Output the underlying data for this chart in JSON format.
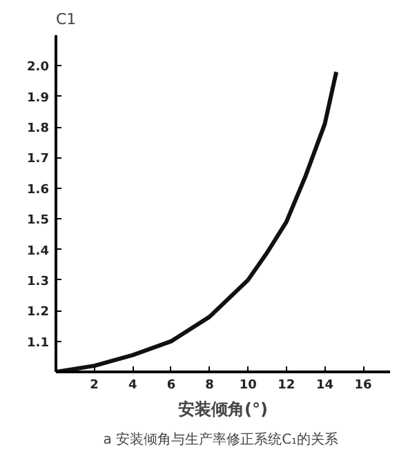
{
  "chart_data": {
    "type": "line",
    "xlabel": "安装倾角(°)",
    "ylabel": "C1",
    "annotations": [
      "a  安装倾角与生产率修正系统C₁的关系"
    ],
    "x": [
      0,
      2,
      4,
      6,
      8,
      10,
      11,
      12,
      13,
      14,
      14.6
    ],
    "series": [
      {
        "color": "#111111",
        "values": [
          1.0,
          1.02,
          1.055,
          1.1,
          1.18,
          1.3,
          1.39,
          1.49,
          1.64,
          1.81,
          1.98
        ]
      }
    ],
    "xlim": [
      0,
      17.4
    ],
    "ylim": [
      1.0,
      2.1
    ],
    "xticks": [
      2,
      4,
      6,
      8,
      10,
      12,
      14,
      16
    ],
    "yticks": [
      1.1,
      1.2,
      1.3,
      1.4,
      1.5,
      1.6,
      1.7,
      1.8,
      1.9,
      {
        "value": 2.0,
        "label": "2.0"
      }
    ],
    "grid": false,
    "marker": "none",
    "line_style": "solid"
  }
}
